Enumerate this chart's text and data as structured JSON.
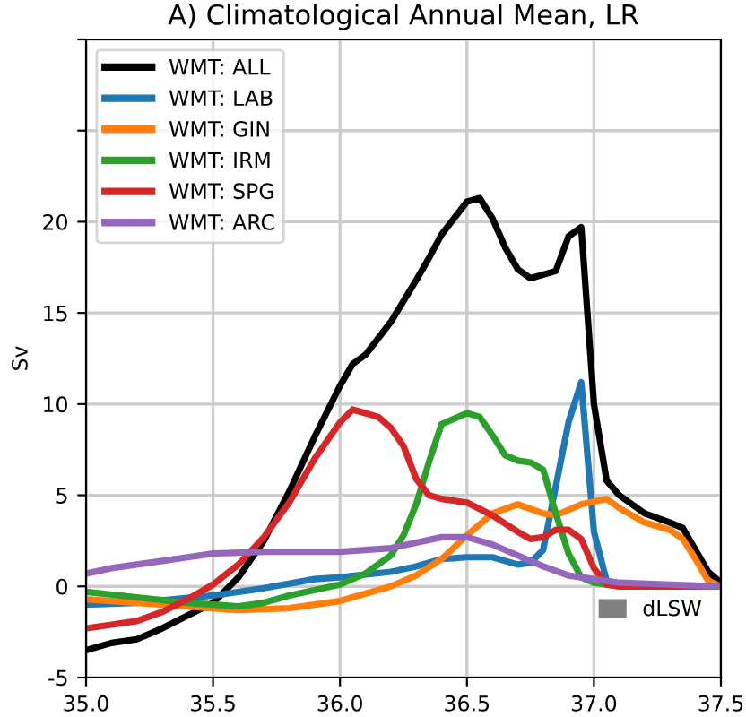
{
  "chart_data": {
    "type": "line",
    "title": "A) Climatological Annual Mean, LR",
    "ylabel": "Sv",
    "xlim": [
      35.0,
      37.5
    ],
    "xticks": [
      {
        "value": 35.0,
        "label": "35.0"
      },
      {
        "value": 35.5,
        "label": "35.5"
      },
      {
        "value": 36.0,
        "label": "36.0"
      },
      {
        "value": 36.5,
        "label": "36.5"
      },
      {
        "value": 37.0,
        "label": "37.0"
      },
      {
        "value": 37.5,
        "label": "37.5"
      }
    ],
    "ylim": [
      -5,
      30
    ],
    "yticks": [
      -5,
      0,
      5,
      10,
      15,
      20,
      {
        "value": 25,
        "label": null
      },
      {
        "value": 30,
        "label": null
      }
    ],
    "grid": true,
    "legend": "top left",
    "annotations": [
      "dLSW"
    ],
    "series": [
      {
        "name": "WMT: ALL",
        "color": "#000000",
        "x": [
          35.0,
          35.1,
          35.2,
          35.3,
          35.4,
          35.5,
          35.6,
          35.7,
          35.8,
          35.9,
          36.0,
          36.05,
          36.1,
          36.2,
          36.3,
          36.35,
          36.4,
          36.5,
          36.55,
          36.6,
          36.65,
          36.7,
          36.75,
          36.85,
          36.9,
          36.95,
          37.0,
          37.05,
          37.1,
          37.2,
          37.3,
          37.35,
          37.4,
          37.45,
          37.5
        ],
        "values": [
          -3.5,
          -3.1,
          -2.9,
          -2.3,
          -1.6,
          -0.9,
          0.5,
          2.5,
          5.2,
          8.2,
          11.0,
          12.2,
          12.7,
          14.5,
          16.8,
          18.0,
          19.3,
          21.1,
          21.3,
          20.2,
          18.6,
          17.4,
          16.9,
          17.3,
          19.2,
          19.7,
          10.0,
          5.8,
          5.0,
          4.0,
          3.5,
          3.2,
          2.0,
          0.8,
          0.2
        ]
      },
      {
        "name": "WMT: LAB",
        "color": "#1f77b4",
        "x": [
          35.0,
          35.2,
          35.5,
          35.7,
          35.9,
          36.0,
          36.2,
          36.3,
          36.4,
          36.5,
          36.6,
          36.7,
          36.75,
          36.8,
          36.85,
          36.9,
          36.95,
          37.0,
          37.05,
          37.1,
          37.5
        ],
        "values": [
          -1.0,
          -0.9,
          -0.5,
          -0.1,
          0.4,
          0.5,
          0.8,
          1.1,
          1.5,
          1.6,
          1.6,
          1.2,
          1.3,
          2.0,
          5.5,
          9.0,
          11.2,
          3.0,
          0.3,
          0.1,
          0.0
        ]
      },
      {
        "name": "WMT: GIN",
        "color": "#ff7f0e",
        "x": [
          35.0,
          35.3,
          35.6,
          35.8,
          36.0,
          36.2,
          36.3,
          36.4,
          36.5,
          36.6,
          36.7,
          36.8,
          36.85,
          36.95,
          37.05,
          37.1,
          37.2,
          37.3,
          37.35,
          37.4,
          37.45,
          37.5
        ],
        "values": [
          -0.7,
          -1.0,
          -1.3,
          -1.2,
          -0.8,
          0.0,
          0.6,
          1.5,
          2.8,
          4.0,
          4.5,
          4.0,
          3.9,
          4.5,
          4.8,
          4.3,
          3.5,
          3.1,
          2.6,
          1.5,
          0.3,
          0.0
        ]
      },
      {
        "name": "WMT: IRM",
        "color": "#2ca02c",
        "x": [
          35.0,
          35.2,
          35.4,
          35.6,
          35.7,
          35.8,
          36.0,
          36.1,
          36.2,
          36.25,
          36.3,
          36.35,
          36.4,
          36.45,
          36.5,
          36.55,
          36.6,
          36.65,
          36.7,
          36.75,
          36.8,
          36.85,
          36.9,
          36.95,
          37.0,
          37.1,
          37.5
        ],
        "values": [
          -0.3,
          -0.6,
          -0.9,
          -1.1,
          -0.9,
          -0.5,
          0.1,
          0.7,
          1.7,
          2.8,
          4.5,
          6.8,
          8.9,
          9.2,
          9.5,
          9.3,
          8.3,
          7.2,
          6.9,
          6.8,
          6.4,
          4.0,
          1.8,
          0.5,
          0.2,
          0.0,
          0.0
        ]
      },
      {
        "name": "WMT: SPG",
        "color": "#d62728",
        "x": [
          35.0,
          35.1,
          35.2,
          35.3,
          35.4,
          35.5,
          35.6,
          35.7,
          35.8,
          35.9,
          36.0,
          36.05,
          36.1,
          36.15,
          36.2,
          36.25,
          36.3,
          36.35,
          36.4,
          36.5,
          36.6,
          36.7,
          36.75,
          36.8,
          36.85,
          36.9,
          36.95,
          37.0,
          37.05,
          37.1,
          37.5
        ],
        "values": [
          -2.3,
          -2.1,
          -1.9,
          -1.4,
          -0.7,
          0.1,
          1.2,
          2.7,
          4.6,
          7.0,
          9.0,
          9.7,
          9.5,
          9.3,
          8.7,
          7.7,
          5.9,
          5.0,
          4.8,
          4.6,
          3.9,
          3.0,
          2.6,
          2.7,
          3.1,
          3.1,
          2.6,
          1.0,
          0.1,
          0.0,
          0.0
        ]
      },
      {
        "name": "WMT: ARC",
        "color": "#9467bd",
        "x": [
          35.0,
          35.1,
          35.2,
          35.3,
          35.4,
          35.5,
          35.7,
          35.9,
          36.0,
          36.2,
          36.3,
          36.4,
          36.5,
          36.6,
          36.7,
          36.8,
          36.9,
          37.0,
          37.1,
          37.3,
          37.5
        ],
        "values": [
          0.7,
          1.0,
          1.2,
          1.4,
          1.6,
          1.8,
          1.9,
          1.9,
          1.9,
          2.1,
          2.4,
          2.7,
          2.7,
          2.3,
          1.7,
          1.1,
          0.6,
          0.4,
          0.2,
          0.1,
          0.0
        ]
      }
    ]
  }
}
